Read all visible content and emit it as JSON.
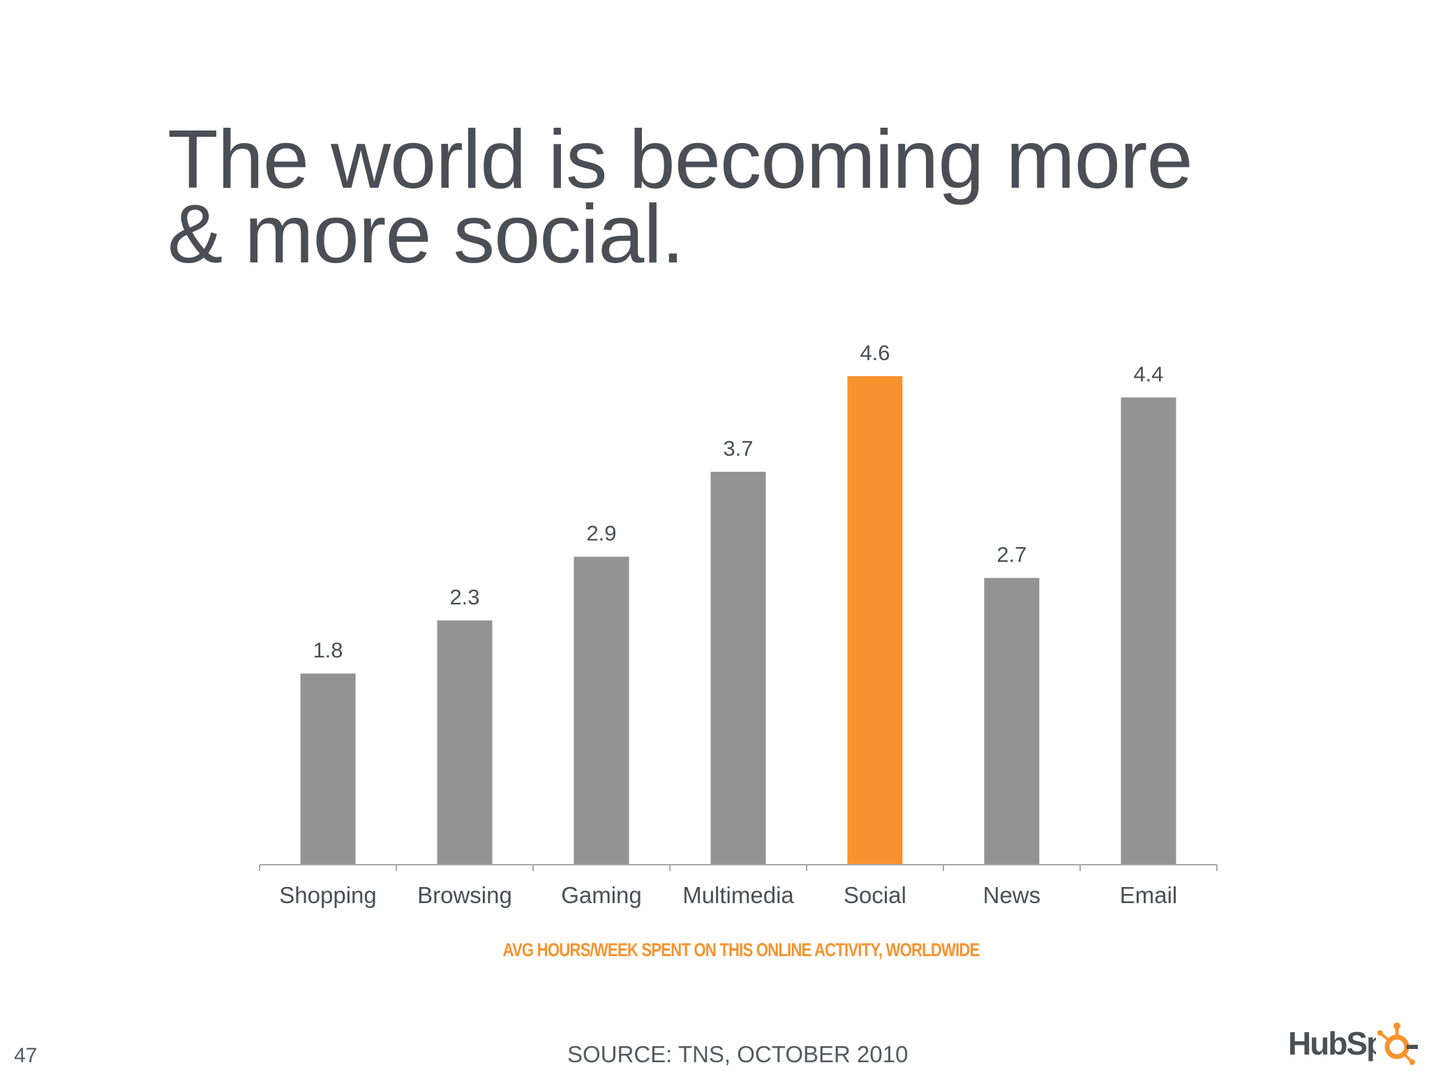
{
  "slide": {
    "title_line1": "The world is becoming more",
    "title_line2": "& more social.",
    "caption": "AVG HOURS/WEEK SPENT ON THIS ONLINE ACTIVITY, WORLDWIDE",
    "source": "SOURCE: TNS, OCTOBER 2010",
    "page_number": "47",
    "logo_text": "HubSpot"
  },
  "colors": {
    "bar_default": "#939393",
    "bar_highlight": "#f7932f",
    "title": "#4a4f55",
    "caption": "#f7932f",
    "axis": "#a9a9a9",
    "label": "#4a4f55"
  },
  "chart_data": {
    "type": "bar",
    "categories": [
      "Shopping",
      "Browsing",
      "Gaming",
      "Multimedia",
      "Social",
      "News",
      "Email"
    ],
    "values": [
      1.8,
      2.3,
      2.9,
      3.7,
      4.6,
      2.7,
      4.4
    ],
    "data_labels": [
      "1.8",
      "2.3",
      "2.9",
      "3.7",
      "4.6",
      "2.7",
      "4.4"
    ],
    "highlight_category": "Social",
    "title": "",
    "xlabel": "",
    "ylabel": "",
    "ylim": [
      0,
      4.6
    ],
    "grid": false,
    "legend": "none"
  }
}
